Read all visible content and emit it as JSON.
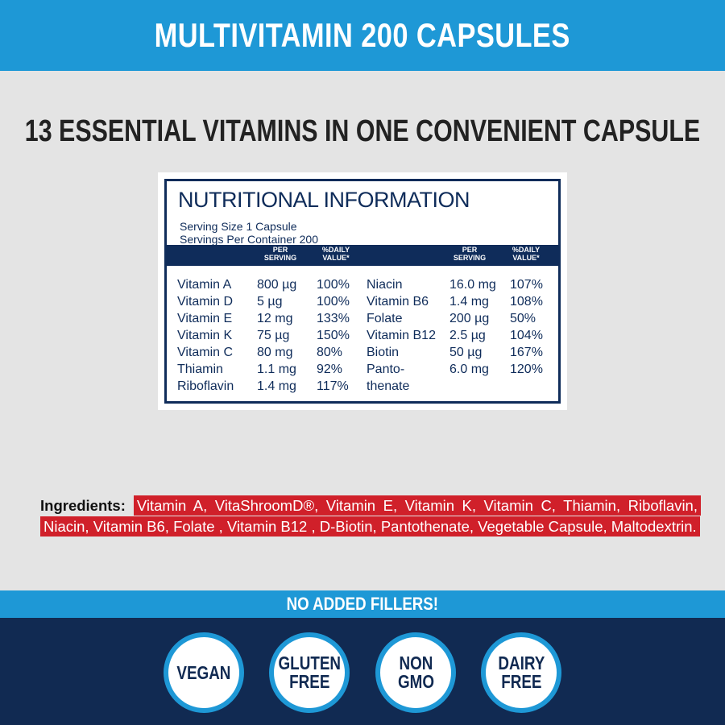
{
  "header": {
    "title": "MULTIVITAMIN 200 CAPSULES"
  },
  "tagline": "13 ESSENTIAL VITAMINS IN ONE CONVENIENT CAPSULE",
  "nutrition": {
    "title": "NUTRITIONAL INFORMATION",
    "serving_size": "Serving Size  1 Capsule",
    "servings_per_container": "Servings Per Container  200",
    "col_per_serving": "PER\nSERVING",
    "col_daily_value": "%DAILY\nVALUE*",
    "left_rows": [
      {
        "name": "Vitamin A",
        "amount": "800 µg",
        "dv": "100%"
      },
      {
        "name": "Vitamin D",
        "amount": "5 µg",
        "dv": "100%"
      },
      {
        "name": "Vitamin E",
        "amount": "12 mg",
        "dv": "133%"
      },
      {
        "name": "Vitamin K",
        "amount": "75 µg",
        "dv": "150%"
      },
      {
        "name": "Vitamin C",
        "amount": "80 mg",
        "dv": "80%"
      },
      {
        "name": "Thiamin",
        "amount": "1.1 mg",
        "dv": "92%"
      },
      {
        "name": "Riboflavin",
        "amount": "1.4 mg",
        "dv": "117%"
      }
    ],
    "right_rows": [
      {
        "name": "Niacin",
        "amount": "16.0 mg",
        "dv": "107%"
      },
      {
        "name": "Vitamin B6",
        "amount": "1.4 mg",
        "dv": "108%"
      },
      {
        "name": "Folate",
        "amount": "200 µg",
        "dv": "50%"
      },
      {
        "name": "Vitamin B12",
        "amount": "2.5 µg",
        "dv": "104%"
      },
      {
        "name": "Biotin",
        "amount": "50 µg",
        "dv": "167%"
      },
      {
        "name": "Panto-",
        "amount": "6.0 mg",
        "dv": "120%"
      },
      {
        "name": "thenate",
        "amount": "",
        "dv": ""
      }
    ]
  },
  "ingredients": {
    "label": "Ingredients:",
    "text": "Vitamin A, VitaShroomD®, Vitamin E, Vitamin K, Vitamin C, Thiamin, Riboflavin, Niacin, Vitamin B6, Folate , Vitamin B12 , D-Biotin, Pantothenate, Vegetable Capsule, Maltodextrin."
  },
  "fillers_banner": "NO ADDED FILLERS!",
  "badges": [
    "VEGAN",
    "GLUTEN\nFREE",
    "NON\nGMO",
    "DAIRY\nFREE"
  ],
  "colors": {
    "banner_blue": "#1e98d6",
    "navy": "#0f2c5a",
    "ingredient_red": "#d0202a",
    "background_gray": "#e4e4e4"
  }
}
